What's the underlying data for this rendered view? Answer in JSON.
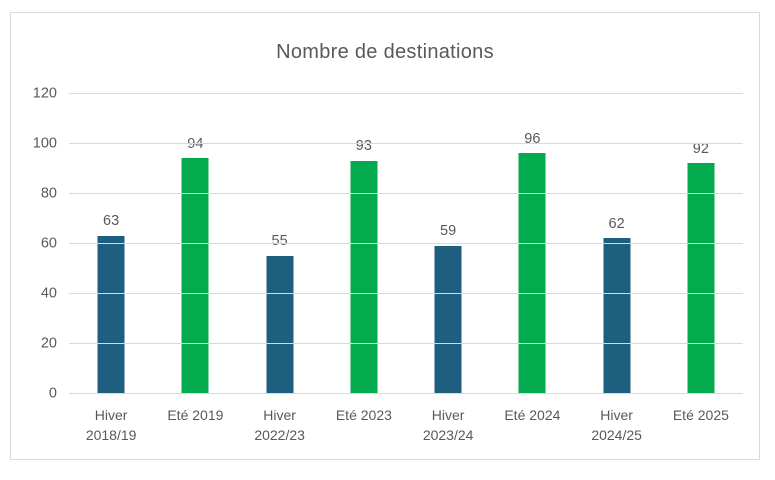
{
  "chart_data": {
    "type": "bar",
    "title": "Nombre de destinations",
    "categories": [
      "Hiver 2018/19",
      "Eté 2019",
      "Hiver 2022/23",
      "Eté 2023",
      "Hiver 2023/24",
      "Eté 2024",
      "Hiver 2024/25",
      "Eté 2025"
    ],
    "values": [
      63,
      94,
      55,
      93,
      59,
      96,
      62,
      92
    ],
    "point_colors": [
      "#1E5E7E",
      "#03AB4E",
      "#1E5E7E",
      "#03AB4E",
      "#1E5E7E",
      "#03AB4E",
      "#1E5E7E",
      "#03AB4E"
    ],
    "data_labels": [
      "63",
      "94",
      "55",
      "93",
      "59",
      "96",
      "62",
      "92"
    ],
    "xlabel": "",
    "ylabel": "",
    "ylim": [
      0,
      120
    ],
    "y_ticks": [
      0,
      20,
      40,
      60,
      80,
      100,
      120
    ],
    "grid": true,
    "legend": "none"
  },
  "colors": {
    "hiver_bar": "#1E5E7E",
    "ete_bar": "#03AB4E",
    "gridline": "#D9D9D9",
    "frame_border": "#D9D9D9",
    "text": "#595959",
    "background": "#FFFFFF"
  }
}
